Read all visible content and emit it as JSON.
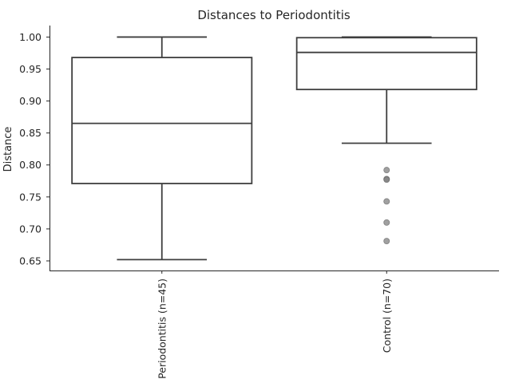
{
  "chart_data": {
    "type": "box",
    "title": "Distances to Periodontitis",
    "xlabel": "",
    "ylabel": "Distance",
    "ylim": [
      0.635,
      1.018
    ],
    "yticks": [
      0.65,
      0.7,
      0.75,
      0.8,
      0.85,
      0.9,
      0.95,
      1.0
    ],
    "ytick_labels": [
      "0.65",
      "0.70",
      "0.75",
      "0.80",
      "0.85",
      "0.90",
      "0.95",
      "1.00"
    ],
    "grid": false,
    "categories": [
      "Periodontitis (n=45)",
      "Control (n=70)"
    ],
    "boxes": [
      {
        "category": "Periodontitis (n=45)",
        "whisker_low": 0.652,
        "q1": 0.771,
        "median": 0.865,
        "q3": 0.968,
        "whisker_high": 1.0,
        "outliers": []
      },
      {
        "category": "Control (n=70)",
        "whisker_low": 0.834,
        "q1": 0.918,
        "median": 0.976,
        "q3": 0.999,
        "whisker_high": 1.0,
        "outliers": [
          0.792,
          0.778,
          0.777,
          0.743,
          0.71,
          0.681
        ]
      }
    ],
    "colors": {
      "box_line": "#3f3f3f",
      "axis": "#262626",
      "outlier": "#808080"
    }
  }
}
